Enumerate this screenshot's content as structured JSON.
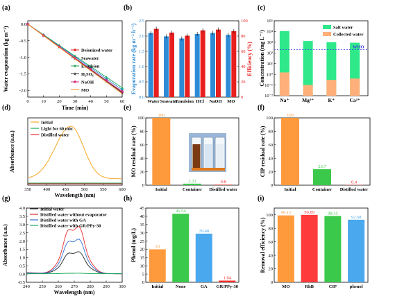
{
  "panels": {
    "a": {
      "label": "(a)"
    },
    "b": {
      "label": "(b)"
    },
    "c": {
      "label": "(c)"
    },
    "d": {
      "label": "(d)"
    },
    "e": {
      "label": "(e)"
    },
    "f": {
      "label": "(f)"
    },
    "g": {
      "label": "(g)"
    },
    "h": {
      "label": "(h)"
    },
    "i": {
      "label": "(i)"
    }
  },
  "chart_data": [
    {
      "id": "a",
      "type": "line",
      "xlabel": "Time (min)",
      "ylabel": "Water evaporation (kg m⁻²)",
      "xlim": [
        0,
        60
      ],
      "ylim": [
        -2.2,
        0.1
      ],
      "xticks": [
        "0",
        "10",
        "20",
        "30",
        "40",
        "50",
        "60"
      ],
      "yticks": [
        "0.0",
        "-0.5",
        "-1.0",
        "-1.5",
        "-2.0"
      ],
      "x": [
        0,
        10,
        20,
        30,
        40,
        50,
        60
      ],
      "series": [
        {
          "name": "Deionized water",
          "color": "#e8292c",
          "marker": "circle",
          "values": [
            0,
            -0.34,
            -0.68,
            -1.03,
            -1.37,
            -1.71,
            -2.05
          ]
        },
        {
          "name": "Seawater",
          "color": "#2e8bd6",
          "marker": "circle",
          "values": [
            0,
            -0.33,
            -0.66,
            -0.99,
            -1.32,
            -1.65,
            -1.98
          ]
        },
        {
          "name": "Emulsion",
          "color": "#19a85a",
          "marker": "triangle",
          "values": [
            0,
            -0.32,
            -0.64,
            -0.96,
            -1.28,
            -1.6,
            -1.92
          ]
        },
        {
          "name": "H₂SO₄",
          "color": "#333333",
          "marker": "star",
          "values": [
            0,
            -0.34,
            -0.69,
            -1.04,
            -1.38,
            -1.72,
            -2.07
          ]
        },
        {
          "name": "NaOH",
          "color": "#d62a7a",
          "marker": "circle",
          "values": [
            0,
            -0.34,
            -0.68,
            -1.02,
            -1.36,
            -1.7,
            -2.03
          ]
        },
        {
          "name": "MO",
          "color": "#ff8c1a",
          "marker": "none",
          "values": [
            0,
            -0.35,
            -0.7,
            -1.05,
            -1.4,
            -1.75,
            -2.1
          ]
        }
      ]
    },
    {
      "id": "b",
      "type": "bar",
      "ylabel": "Evaporation rate (kg m⁻² h⁻¹)",
      "y2label": "Efficiency (%)",
      "ylim": [
        0,
        2.5
      ],
      "y2lim": [
        0,
        100
      ],
      "yticks": [
        "0.0",
        "0.5",
        "1.0",
        "1.5",
        "2.0",
        "2.5"
      ],
      "y2ticks": [
        "0",
        "20",
        "40",
        "60",
        "80",
        "100"
      ],
      "categories": [
        "Water",
        "Seawater",
        "Emulsion",
        "HCl",
        "NaOH",
        "MO"
      ],
      "series": [
        {
          "axis": "left",
          "color": "#2e8bd6",
          "values": [
            2.1,
            1.99,
            1.92,
            2.07,
            2.1,
            2.04
          ]
        },
        {
          "axis": "right",
          "color": "#e81f1f",
          "values": [
            89.5,
            84.5,
            80.5,
            87.5,
            88.5,
            86.5
          ]
        }
      ]
    },
    {
      "id": "c",
      "type": "bar",
      "ylabel": "Concentration (mg L⁻¹)",
      "yscale": "log",
      "ylim": [
        0.01,
        100000
      ],
      "yticks": [
        "10⁻²",
        "10⁻¹",
        "10⁰",
        "10¹",
        "10²",
        "10³",
        "10⁴",
        "10⁵"
      ],
      "categories": [
        "Na⁺",
        "Mg²⁺",
        "K⁺",
        "Ca²⁺"
      ],
      "series": [
        {
          "name": "Salt water",
          "color": "#2ee88a",
          "values": [
            11000,
            1300,
            1000,
            900
          ]
        },
        {
          "name": "Collected water",
          "color": "#ffb07a",
          "values": [
            1.5,
            0.1,
            0.3,
            0.4
          ]
        }
      ],
      "reference_line": {
        "label": "WHO",
        "value": 200,
        "color": "#3a3adf"
      }
    },
    {
      "id": "d",
      "type": "line",
      "xlabel": "Wavelength (nm)",
      "ylabel": "Absorbance (a.u.)",
      "xlim": [
        350,
        600
      ],
      "xticks": [
        "350",
        "400",
        "450",
        "500",
        "550",
        "600"
      ],
      "series": [
        {
          "name": "Initial",
          "color": "#f5a623",
          "peak_nm": 464
        },
        {
          "name": "Light for 60 min",
          "color": "#19a85a"
        },
        {
          "name": "Distilled water",
          "color": "#e8292c"
        }
      ]
    },
    {
      "id": "e",
      "type": "bar",
      "ylabel": "MO residual rate (%)",
      "ylim": [
        0,
        100
      ],
      "yticks": [
        "0",
        "20",
        "40",
        "60",
        "80",
        "100"
      ],
      "categories": [
        "Initial",
        "Container",
        "Distilled water"
      ],
      "values": [
        100,
        2.21,
        0.8
      ],
      "value_labels": [
        "100",
        "2.21",
        "0.8"
      ],
      "colors": [
        "#ff9a3c",
        "#3ac94a",
        "#ff3030"
      ]
    },
    {
      "id": "f",
      "type": "bar",
      "ylabel": "CIP residual rate (%)",
      "ylim": [
        0,
        100
      ],
      "yticks": [
        "0",
        "20",
        "40",
        "60",
        "80",
        "100"
      ],
      "categories": [
        "Initial",
        "Container",
        "Distilled water"
      ],
      "values": [
        100,
        23.7,
        0.4
      ],
      "value_labels": [
        "100",
        "23.7",
        "0.4"
      ],
      "colors": [
        "#ff9a3c",
        "#3ac94a",
        "#ff3030"
      ]
    },
    {
      "id": "g",
      "type": "line",
      "xlabel": "Wavelength (nm)",
      "ylabel": "Absorbance (a.u.)",
      "xlim": [
        240,
        300
      ],
      "ylim": [
        -0.5,
        4.0
      ],
      "xticks": [
        "240",
        "250",
        "260",
        "270",
        "280",
        "290",
        "300"
      ],
      "yticks": [
        "-0.5",
        "0.0",
        "0.5",
        "1.0",
        "1.5",
        "2.0",
        "2.5",
        "3.0",
        "3.5",
        "4.0"
      ],
      "series": [
        {
          "name": "Initial water",
          "color": "#222222",
          "peak": 1.4
        },
        {
          "name": "Distilled water without evaporator",
          "color": "#e8292c",
          "peak": 3.0
        },
        {
          "name": "Distilled water with GA",
          "color": "#2e6fd6",
          "peak": 2.2
        },
        {
          "name": "Distilled water with GR/PPy-30",
          "color": "#19a85a",
          "peak": 0.03
        }
      ]
    },
    {
      "id": "h",
      "type": "bar",
      "ylabel": "Phenol (mg/L)",
      "ylim": [
        0,
        45
      ],
      "yticks": [
        "0",
        "5",
        "10",
        "15",
        "20",
        "25",
        "30",
        "35",
        "40",
        "45"
      ],
      "categories": [
        "Initial",
        "None",
        "GA",
        "GR/PPy-30"
      ],
      "values": [
        20,
        41.54,
        29.48,
        1.04
      ],
      "value_labels": [
        "20",
        "41.54",
        "29.48",
        "1.04"
      ],
      "colors": [
        "#ff9a3c",
        "#3ac94a",
        "#4aa8ef",
        "#ff3030"
      ]
    },
    {
      "id": "i",
      "type": "bar",
      "ylabel": "Removal efficiency (%)",
      "ylim": [
        0,
        110
      ],
      "yticks": [
        "0",
        "20",
        "40",
        "60",
        "80",
        "100"
      ],
      "categories": [
        "MO",
        "RhB",
        "CIP",
        "phenol"
      ],
      "values": [
        99.12,
        99.89,
        98.35,
        92.68
      ],
      "value_labels": [
        "99.12",
        "99.89",
        "98.35",
        "92.68"
      ],
      "colors": [
        "#ff9a3c",
        "#ff3a3a",
        "#3ac94a",
        "#4aa8ef"
      ]
    }
  ]
}
